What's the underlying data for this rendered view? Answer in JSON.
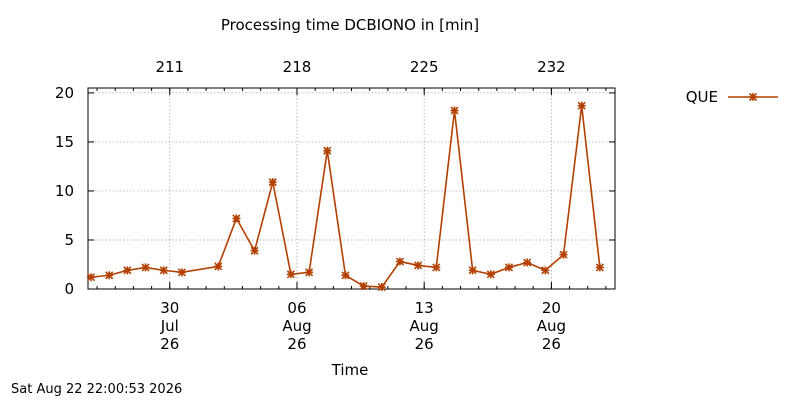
{
  "chart_data": {
    "type": "line",
    "title": "Processing time DCBIONO in [min]",
    "xlabel": "Time",
    "ylabel": "",
    "ylim": [
      0,
      20.5
    ],
    "y_ticks": [
      0,
      5,
      10,
      15,
      20
    ],
    "grid": true,
    "legend_position": "top-right, outside plot",
    "x_range": [
      "2026-07-25T12:00",
      "2026-08-23T12:00"
    ],
    "x_ticks": [
      {
        "date": "2026-07-30",
        "label": [
          "30",
          "Jul",
          "26"
        ]
      },
      {
        "date": "2026-08-06",
        "label": [
          "06",
          "Aug",
          "26"
        ]
      },
      {
        "date": "2026-08-13",
        "label": [
          "13",
          "Aug",
          "26"
        ]
      },
      {
        "date": "2026-08-20",
        "label": [
          "20",
          "Aug",
          "26"
        ]
      }
    ],
    "top_axis_ticks": [
      {
        "date": "2026-07-30",
        "label": "211"
      },
      {
        "date": "2026-08-06",
        "label": "218"
      },
      {
        "date": "2026-08-13",
        "label": "225"
      },
      {
        "date": "2026-08-20",
        "label": "232"
      }
    ],
    "series": [
      {
        "name": "QUE",
        "color": "#b34000",
        "marker": "x-star",
        "points": [
          {
            "x": "2026-07-25T16:00",
            "y": 1.2
          },
          {
            "x": "2026-07-26T16:00",
            "y": 1.4
          },
          {
            "x": "2026-07-27T16:00",
            "y": 1.9
          },
          {
            "x": "2026-07-28T16:00",
            "y": 2.2
          },
          {
            "x": "2026-07-29T16:00",
            "y": 1.9
          },
          {
            "x": "2026-07-30T16:00",
            "y": 1.7
          },
          {
            "x": "2026-08-01T16:00",
            "y": 2.3
          },
          {
            "x": "2026-08-02T16:00",
            "y": 7.2
          },
          {
            "x": "2026-08-03T16:00",
            "y": 3.9
          },
          {
            "x": "2026-08-04T16:00",
            "y": 10.9
          },
          {
            "x": "2026-08-05T16:00",
            "y": 1.5
          },
          {
            "x": "2026-08-06T16:00",
            "y": 1.7
          },
          {
            "x": "2026-08-07T16:00",
            "y": 14.1
          },
          {
            "x": "2026-08-08T16:00",
            "y": 1.4
          },
          {
            "x": "2026-08-09T16:00",
            "y": 0.3
          },
          {
            "x": "2026-08-10T16:00",
            "y": 0.2
          },
          {
            "x": "2026-08-11T16:00",
            "y": 2.8
          },
          {
            "x": "2026-08-12T16:00",
            "y": 2.4
          },
          {
            "x": "2026-08-13T16:00",
            "y": 2.2
          },
          {
            "x": "2026-08-14T16:00",
            "y": 18.2
          },
          {
            "x": "2026-08-15T16:00",
            "y": 1.9
          },
          {
            "x": "2026-08-16T16:00",
            "y": 1.5
          },
          {
            "x": "2026-08-17T16:00",
            "y": 2.2
          },
          {
            "x": "2026-08-18T16:00",
            "y": 2.7
          },
          {
            "x": "2026-08-19T16:00",
            "y": 1.9
          },
          {
            "x": "2026-08-20T16:00",
            "y": 3.5
          },
          {
            "x": "2026-08-21T16:00",
            "y": 18.7
          },
          {
            "x": "2026-08-22T16:00",
            "y": 2.2
          }
        ]
      }
    ]
  },
  "footer": {
    "timestamp": "Sat Aug 22 22:00:53 2026"
  }
}
